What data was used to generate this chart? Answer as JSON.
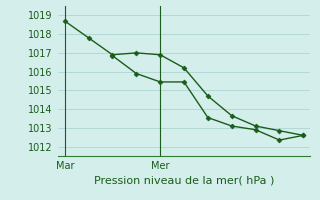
{
  "line1_x": [
    0,
    1,
    2,
    3,
    4,
    5,
    6,
    7,
    8,
    9,
    10
  ],
  "line1_y": [
    1018.7,
    1017.8,
    1016.9,
    1017.0,
    1016.9,
    1016.2,
    1014.7,
    1013.65,
    1013.1,
    1012.85,
    1012.6
  ],
  "line2_x": [
    2,
    3,
    4,
    5,
    6,
    7,
    8,
    9,
    10
  ],
  "line2_y": [
    1016.85,
    1015.9,
    1015.45,
    1015.45,
    1013.55,
    1013.1,
    1012.9,
    1012.35,
    1012.6
  ],
  "line_color": "#1a5c1a",
  "marker": "D",
  "marker_size": 2.5,
  "line_width": 1.0,
  "ylim": [
    1011.5,
    1019.5
  ],
  "yticks": [
    1012,
    1013,
    1014,
    1015,
    1016,
    1017,
    1018,
    1019
  ],
  "xlim": [
    -0.3,
    10.3
  ],
  "xlabel": "Pression niveau de la mer( hPa )",
  "bg_color": "#d4eeec",
  "grid_color": "#b2d8d6",
  "axis_color": "#2e7d32",
  "text_color": "#1a5c1a",
  "xlabel_fontsize": 8,
  "tick_fontsize": 7,
  "vline_mar_x": 0,
  "vline_mer_x": 4,
  "xtick_mar": 0,
  "xtick_mer": 4
}
